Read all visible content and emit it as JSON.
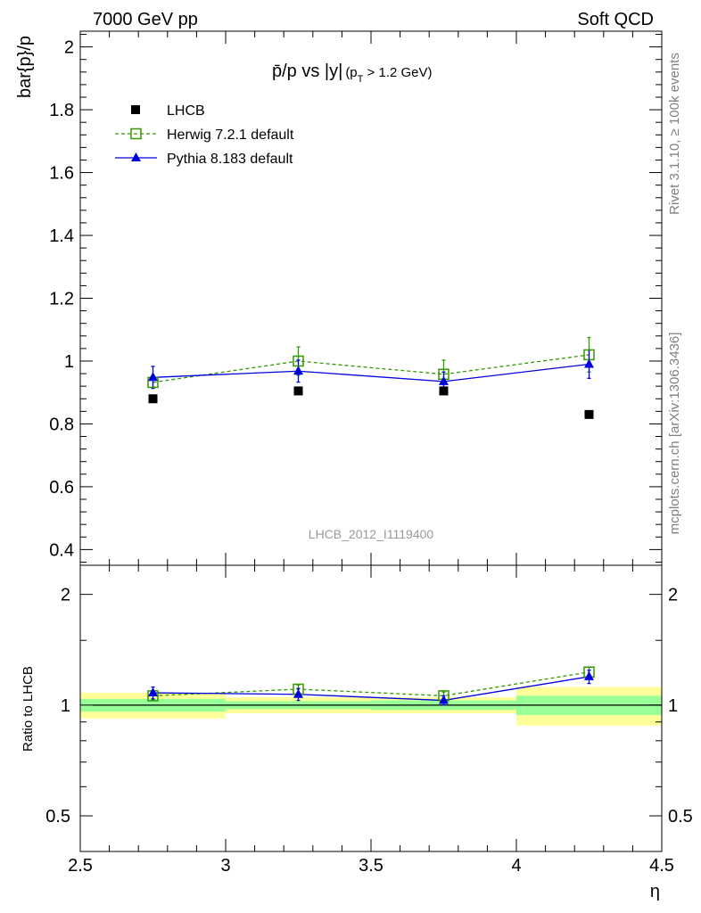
{
  "header": {
    "left": "7000 GeV pp",
    "right": "Soft QCD"
  },
  "side_labels": {
    "rivet": "Rivet 3.1.10, ≥ 100k events",
    "mcplots": "mcplots.cern.ch [arXiv:1306.3436]"
  },
  "analysis_id": "LHCB_2012_I1119400",
  "colors": {
    "data": "#000000",
    "herwig": "#339900",
    "pythia": "#0000dd",
    "band_inner": "#99ff99",
    "band_outer": "#ffff99"
  },
  "chart_data": {
    "type": "scatter",
    "title_main": "p̄/p vs |y|",
    "title_sub": "(p",
    "title_sub_index": "T",
    "title_sub_tail": " > 1.2 GeV)",
    "xlabel": "η",
    "ylabel": "bar{p}/p",
    "ratio_ylabel": "Ratio to LHCB",
    "xlim": [
      2.5,
      4.5
    ],
    "ylim": [
      0.35,
      2.05
    ],
    "ratio_ylim": [
      0.4,
      2.4
    ],
    "x_ticks": [
      2.5,
      3,
      3.5,
      4,
      4.5
    ],
    "x_tick_labels": [
      "2.5",
      "3",
      "3.5",
      "4",
      "4.5"
    ],
    "y_ticks": [
      0.4,
      0.6,
      0.8,
      1,
      1.2,
      1.4,
      1.6,
      1.8,
      2
    ],
    "y_tick_labels": [
      "0.4",
      "0.6",
      "0.8",
      "1",
      "1.2",
      "1.4",
      "1.6",
      "1.8",
      "2"
    ],
    "ratio_ticks": [
      0.5,
      1,
      2
    ],
    "ratio_tick_labels": [
      "0.5",
      "1",
      "2"
    ],
    "x": [
      2.75,
      3.25,
      3.75,
      4.25
    ],
    "bins": [
      [
        2.5,
        3.0
      ],
      [
        3.0,
        3.5
      ],
      [
        3.5,
        4.0
      ],
      [
        4.0,
        4.5
      ]
    ],
    "series": [
      {
        "name": "LHCB",
        "values": [
          0.88,
          0.905,
          0.905,
          0.83
        ],
        "errors": [
          0.012,
          0.012,
          0.012,
          0.02
        ]
      },
      {
        "name": "Herwig 7.2.1 default",
        "values": [
          0.932,
          1.0,
          0.958,
          1.02
        ],
        "errors": [
          0.018,
          0.045,
          0.045,
          0.055
        ]
      },
      {
        "name": "Pythia 8.183 default",
        "values": [
          0.948,
          0.968,
          0.935,
          0.99
        ],
        "errors": [
          0.035,
          0.035,
          0.03,
          0.045
        ]
      }
    ],
    "ratio_series": [
      {
        "name": "Herwig 7.2.1 default",
        "values": [
          1.06,
          1.105,
          1.06,
          1.23
        ],
        "errors": [
          0.025,
          0.03,
          0.025,
          0.04
        ]
      },
      {
        "name": "Pythia 8.183 default",
        "values": [
          1.08,
          1.07,
          1.03,
          1.195
        ],
        "errors": [
          0.04,
          0.04,
          0.03,
          0.05
        ]
      }
    ],
    "ratio_bands": {
      "inner": [
        [
          0.96,
          1.04
        ],
        [
          0.975,
          1.025
        ],
        [
          0.97,
          1.03
        ],
        [
          0.94,
          1.06
        ]
      ],
      "outer": [
        [
          0.92,
          1.08
        ],
        [
          0.95,
          1.05
        ],
        [
          0.95,
          1.05
        ],
        [
          0.88,
          1.12
        ]
      ]
    },
    "legend_position": "top-left"
  }
}
